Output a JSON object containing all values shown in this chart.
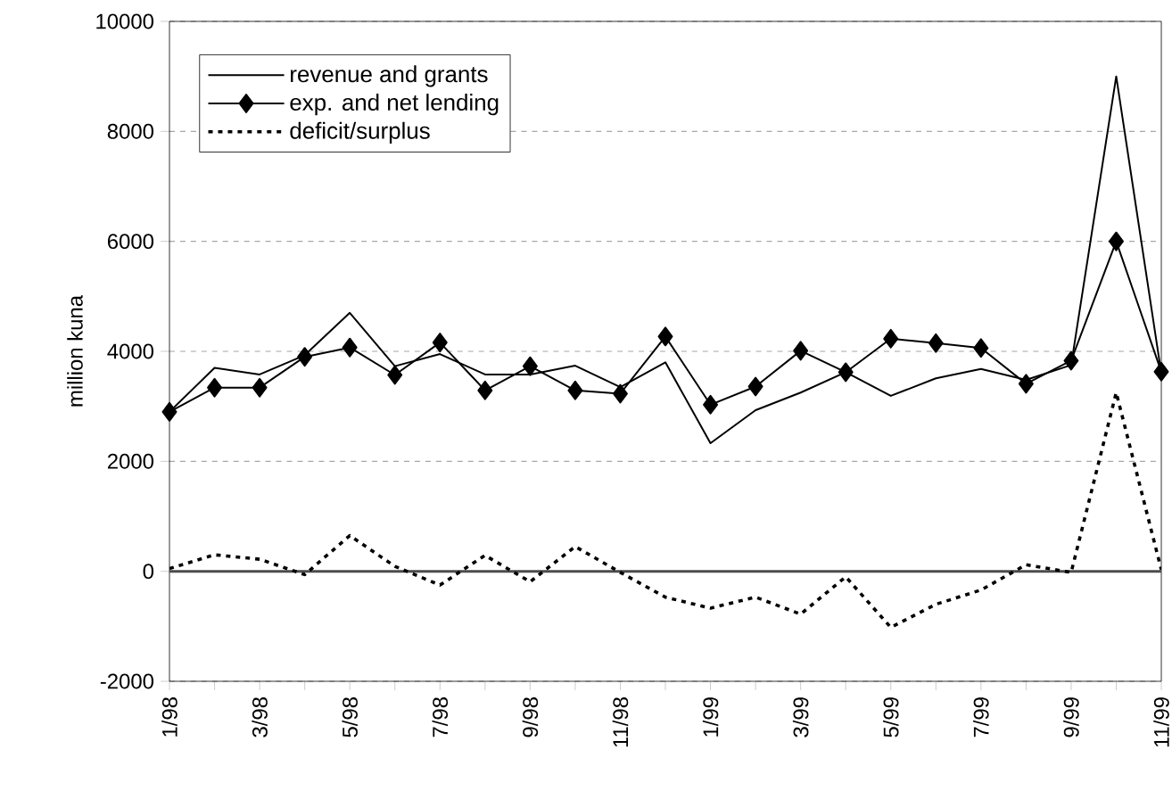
{
  "chart_data": {
    "type": "line",
    "ylabel": "million kuna",
    "categories": [
      "1/98",
      null,
      "3/98",
      null,
      "5/98",
      null,
      "7/98",
      null,
      "9/98",
      null,
      "11/98",
      null,
      "1/99",
      null,
      "3/99",
      null,
      "5/99",
      null,
      "7/99",
      null,
      "9/99",
      null,
      "11/99"
    ],
    "series": [
      {
        "name": "revenue and grants",
        "color": "#000000",
        "marker": "none",
        "line_style": "solid",
        "values": [
          2900,
          3700,
          3580,
          3930,
          4700,
          3730,
          3950,
          3580,
          3580,
          3740,
          3350,
          3800,
          2330,
          2930,
          3250,
          3620,
          3190,
          3510,
          3680,
          3480,
          3750,
          9000,
          3600
        ]
      },
      {
        "name": "exp. and net lending",
        "color": "#000000",
        "marker": "diamond",
        "line_style": "solid",
        "values": [
          2900,
          3340,
          3340,
          3900,
          4070,
          3570,
          4160,
          3290,
          3730,
          3290,
          3230,
          4270,
          3030,
          3360,
          4010,
          3620,
          4230,
          4150,
          4060,
          3410,
          3830,
          6000,
          3630
        ]
      },
      {
        "name": "deficit/surplus",
        "color": "#000000",
        "marker": "none",
        "line_style": "dotted",
        "values": [
          50,
          300,
          220,
          -60,
          650,
          90,
          -250,
          290,
          -190,
          450,
          -20,
          -470,
          -670,
          -470,
          -780,
          -100,
          -1020,
          -600,
          -340,
          120,
          -20,
          3250,
          30
        ]
      }
    ],
    "ylim": [
      -2000,
      10000
    ],
    "yticks": [
      -2000,
      0,
      2000,
      4000,
      6000,
      8000,
      10000
    ],
    "ref_lines": [
      {
        "axis": "y",
        "value": 0
      }
    ],
    "grid": "y",
    "legend": "top left"
  }
}
